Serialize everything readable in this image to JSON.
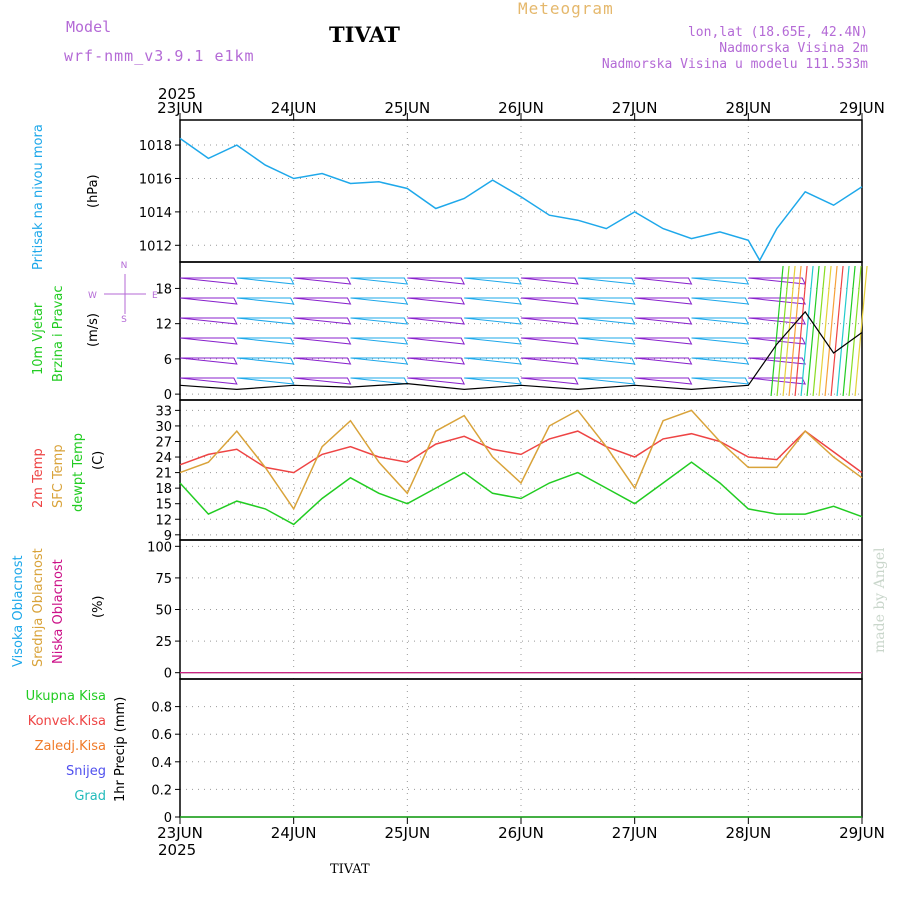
{
  "header": {
    "model_label": "Model",
    "model_name": "wrf-nmm_v3.9.1 e1km",
    "title": "TIVAT",
    "meteogram_label": "Meteogram",
    "location": "lon,lat (18.65E, 42.4N)",
    "elevation": "Nadmorska Visina 2m",
    "model_elevation": "Nadmorska Visina u modelu 111.533m"
  },
  "footer": {
    "station": "TIVAT",
    "watermark": "made by Angel"
  },
  "colors": {
    "pressure": "#1ea8ea",
    "temp2m": "#ee4444",
    "sfc": "#d9a33a",
    "dewpt": "#22cc22",
    "total_rain": "#22cc22",
    "conv_rain": "#ee4444",
    "frz_rain": "#f07a28",
    "snow": "#5050ee",
    "graupel": "#22bbbb",
    "wind_bars": "#8822cc",
    "purple_label": "#b46ad6"
  },
  "chart_data": [
    {
      "type": "line",
      "ylabel_text": "Pritisak na nivou mora",
      "unit": "(hPa)",
      "ylim": [
        1011,
        1019.5
      ],
      "yticks": [
        "1012",
        "1014",
        "1016",
        "1018"
      ],
      "grid": true,
      "x": [
        0,
        0.25,
        0.5,
        0.75,
        1,
        1.25,
        1.5,
        1.75,
        2,
        2.25,
        2.5,
        2.75,
        3,
        3.25,
        3.5,
        3.75,
        4,
        4.25,
        4.5,
        4.75,
        5,
        5.1,
        5.25,
        5.5,
        5.75,
        6
      ],
      "series": [
        {
          "values": [
            1018.4,
            1017.2,
            1018.0,
            1016.8,
            1016.0,
            1016.3,
            1015.7,
            1015.8,
            1015.4,
            1014.2,
            1014.8,
            1015.9,
            1014.9,
            1013.8,
            1013.5,
            1013.0,
            1014.0,
            1013.0,
            1012.4,
            1012.8,
            1012.3,
            1011.1,
            1013.0,
            1015.2,
            1014.4,
            1015.5
          ]
        }
      ]
    },
    {
      "type": "line",
      "ylabel_text": [
        "10m Vjetar",
        "Brzina i Pravac"
      ],
      "unit": "(m/s)",
      "compass": [
        "N",
        "W",
        "E",
        "S"
      ],
      "ylim": [
        -1,
        22.5
      ],
      "yticks": [
        "0",
        "6",
        "12",
        "18"
      ],
      "grid": true,
      "x": [
        0,
        0.5,
        1,
        1.5,
        2,
        2.5,
        3,
        3.5,
        4,
        4.5,
        5,
        5.25,
        5.5,
        5.75,
        6
      ],
      "series": [
        {
          "values": [
            1.5,
            0.8,
            1.5,
            1.2,
            1.8,
            0.8,
            1.5,
            0.8,
            1.5,
            0.8,
            1.5,
            8.5,
            14,
            7,
            10.5
          ]
        }
      ]
    },
    {
      "type": "line",
      "ylabel_text": [
        "2m Temp",
        "SFC Temp",
        "dewpt Temp"
      ],
      "unit": "(C)",
      "ylim": [
        8,
        35
      ],
      "yticks": [
        "9",
        "12",
        "15",
        "18",
        "21",
        "24",
        "27",
        "30",
        "33"
      ],
      "grid": true,
      "x": [
        0,
        0.25,
        0.5,
        0.75,
        1,
        1.25,
        1.5,
        1.75,
        2,
        2.25,
        2.5,
        2.75,
        3,
        3.25,
        3.5,
        3.75,
        4,
        4.25,
        4.5,
        4.75,
        5,
        5.25,
        5.5,
        5.75,
        6
      ],
      "series": [
        {
          "name": "2m Temp",
          "values": [
            22.5,
            24.5,
            25.5,
            22,
            21,
            24.5,
            26,
            24,
            23,
            26.5,
            28,
            25.5,
            24.5,
            27.5,
            29,
            26,
            24,
            27.5,
            28.5,
            27,
            24,
            23.5,
            29,
            25,
            21
          ]
        },
        {
          "name": "SFC Temp",
          "values": [
            21,
            23,
            29,
            22,
            14,
            26,
            31,
            23,
            17,
            29,
            32,
            24,
            19,
            30,
            33,
            26,
            18,
            31,
            33,
            27,
            22,
            22,
            29,
            24,
            20
          ]
        },
        {
          "name": "dewpt Temp",
          "values": [
            19,
            13,
            15.5,
            14,
            11,
            16,
            20,
            17,
            15,
            18,
            21,
            17,
            16,
            19,
            21,
            18,
            15,
            19,
            23,
            19,
            14,
            13,
            13,
            14.5,
            12.5
          ]
        }
      ]
    },
    {
      "type": "line",
      "ylabel_text": [
        "Visoka Oblacnost",
        "Srednja Oblacnost",
        "Niska Oblacnost"
      ],
      "unit": "(%)",
      "ylim": [
        -5,
        105
      ],
      "yticks": [
        "0",
        "25",
        "50",
        "75",
        "100"
      ],
      "grid": true,
      "x": [
        0,
        6
      ],
      "series": [
        {
          "name": "Visoka Oblacnost",
          "values": [
            0,
            0
          ]
        },
        {
          "name": "Srednja Oblacnost",
          "values": [
            0,
            0
          ]
        },
        {
          "name": "Niska Oblacnost",
          "values": [
            0,
            0
          ]
        }
      ]
    },
    {
      "type": "bar",
      "ylabel_text": "1hr Precip (mm)",
      "legend": [
        "Ukupna Kisa",
        "Konvek.Kisa",
        "Zaledj.Kisa",
        "Snijeg",
        "Grad"
      ],
      "ylim": [
        0,
        1.0
      ],
      "yticks": [
        "0",
        "0.2",
        "0.4",
        "0.6",
        "0.8"
      ],
      "grid": true,
      "x": [
        0,
        6
      ],
      "series": [
        {
          "name": "Ukupna Kisa",
          "values": [
            0,
            0
          ]
        }
      ]
    }
  ],
  "x_axis": {
    "year_top": "2025",
    "year_bottom": "2025",
    "labels": [
      "23JUN",
      "24JUN",
      "25JUN",
      "26JUN",
      "27JUN",
      "28JUN",
      "29JUN"
    ]
  }
}
